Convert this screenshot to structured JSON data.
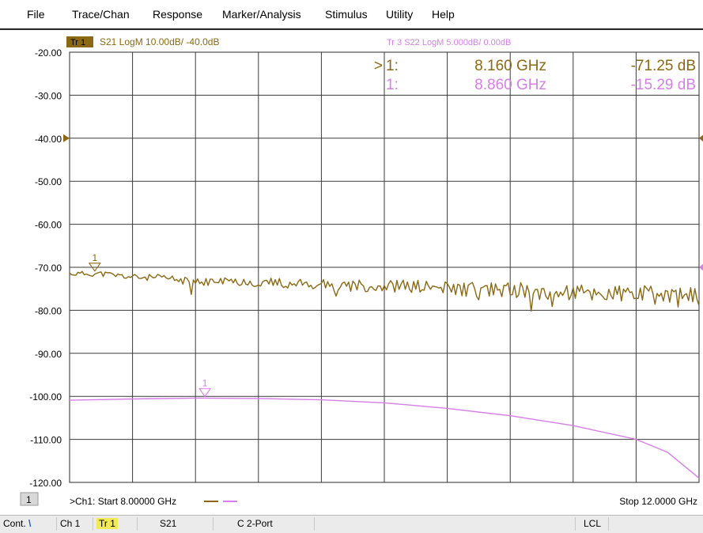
{
  "menu": [
    "File",
    "Trace/Chan",
    "Response",
    "Marker/Analysis",
    "Stimulus",
    "Utility",
    "Help"
  ],
  "trace1_header": {
    "badge": "Tr 1",
    "text": "S21 LogM 10.00dB/ -40.0dB"
  },
  "trace3_header": "Tr 3  S22 LogM 5.000dB/  0.00dB",
  "markers_readout": [
    {
      "active": ">",
      "label": "1:",
      "freq": "8.160 GHz",
      "value": "-71.25 dB"
    },
    {
      "active": "",
      "label": "1:",
      "freq": "8.860 GHz",
      "value": "-15.29 dB"
    }
  ],
  "footer": {
    "channel_box": "1",
    "start": ">Ch1: Start  8.00000 GHz",
    "stop": "Stop  12.0000 GHz"
  },
  "statusbar": {
    "mode": "Cont.",
    "mode_mark": "\\",
    "channel": "Ch 1",
    "trace": "Tr 1",
    "param": "S21",
    "cal": "C  2-Port",
    "lcl": "LCL"
  },
  "colors": {
    "trace1": "#8B6914",
    "trace3": "#d67ee8",
    "grid": "#3a3a3a",
    "badge": "#8B6914"
  },
  "chart_data": {
    "type": "line",
    "x_unit": "GHz",
    "xlim": [
      8.0,
      12.0
    ],
    "x_divisions": 10,
    "ylim": [
      -120,
      -20
    ],
    "y_ticks": [
      "-20.00",
      "-30.00",
      "-40.00",
      "-50.00",
      "-60.00",
      "-70.00",
      "-80.00",
      "-90.00",
      "-100.00",
      "-110.00",
      "-120.00"
    ],
    "reference_level": -40,
    "grid": true,
    "series": [
      {
        "name": "S21",
        "x": [
          8.0,
          8.2,
          8.4,
          8.6,
          8.8,
          9.0,
          9.2,
          9.4,
          9.6,
          9.8,
          10.0,
          10.2,
          10.4,
          10.6,
          10.8,
          11.0,
          11.2,
          11.4,
          11.6,
          11.8,
          12.0
        ],
        "y": [
          -71.5,
          -71.5,
          -72.3,
          -72.5,
          -73.5,
          -73.2,
          -73.5,
          -73.8,
          -74.0,
          -74.2,
          -74.3,
          -74.5,
          -75.0,
          -75.1,
          -75.3,
          -75.6,
          -75.9,
          -76.2,
          -76.4,
          -76.7,
          -77.2
        ],
        "marker": {
          "label": "1",
          "x": 8.16,
          "y": -71.25
        }
      },
      {
        "name": "S22",
        "x": [
          8.0,
          8.4,
          8.8,
          9.2,
          9.6,
          10.0,
          10.4,
          10.8,
          11.2,
          11.6,
          11.8,
          12.0
        ],
        "y": [
          -100.9,
          -100.6,
          -100.4,
          -100.5,
          -100.8,
          -101.5,
          -102.8,
          -104.5,
          -106.8,
          -110.0,
          -113.0,
          -119.0
        ],
        "marker": {
          "label": "1",
          "x": 8.86,
          "y": -100.4
        }
      }
    ]
  }
}
